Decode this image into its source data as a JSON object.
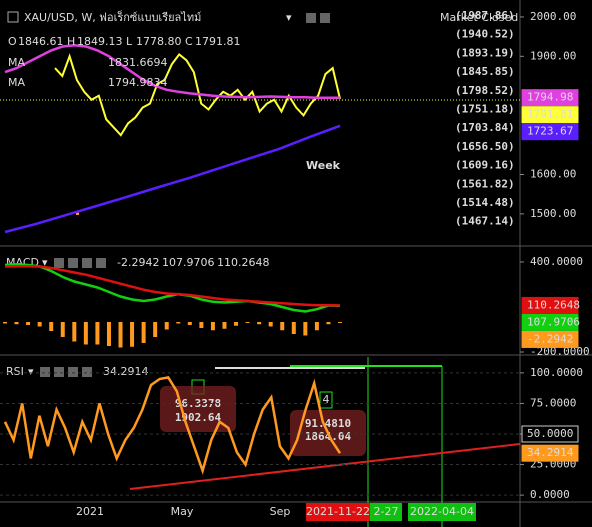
{
  "price_panel": {
    "title": "XAU/USD, W, ฟอเร็กซ์แบบเรียลไทม์",
    "market_status": "Market Closed",
    "ohlc": [
      {
        "key": "O",
        "value": "1846.61"
      },
      {
        "key": "H",
        "value": "1849.13"
      },
      {
        "key": "L",
        "value": "1778.80"
      },
      {
        "key": "C",
        "value": "1791.81"
      }
    ],
    "indicators": [
      {
        "name": "MA",
        "value": "1831.6694"
      },
      {
        "name": "MA",
        "value": "1794.9834"
      }
    ],
    "annotation": "Week",
    "levels": [
      "(1987.86)",
      "(1940.52)",
      "(1893.19)",
      "(1845.85)",
      "(1798.52)",
      "(1751.18)",
      "(1703.84)",
      "(1656.50)",
      "(1609.16)",
      "(1561.82)",
      "(1514.48)",
      "(1467.14)"
    ],
    "ylim": [
      1421,
      2043
    ],
    "yticks": [
      {
        "value": 2000,
        "label": "2000.00"
      },
      {
        "value": 1900,
        "label": "1900.00"
      },
      {
        "value": 1600,
        "label": "1600.00"
      },
      {
        "value": 1500,
        "label": "1500.00"
      }
    ],
    "badges": [
      {
        "value": 1794.98,
        "color": "#e040e0"
      },
      {
        "value": 1791.81,
        "color": "#ffff33"
      },
      {
        "value": 1723.67,
        "color": "#5a1fff"
      }
    ],
    "lines": [
      {
        "color": "#ffff33",
        "values": [
          1870,
          1850,
          1900,
          1840,
          1810,
          1790,
          1800,
          1740,
          1720,
          1700,
          1730,
          1745,
          1770,
          1780,
          1830,
          1840,
          1880,
          1905,
          1890,
          1860,
          1780,
          1765,
          1790,
          1810,
          1800,
          1815,
          1790,
          1810,
          1760,
          1780,
          1790,
          1760,
          1800,
          1770,
          1750,
          1780,
          1800,
          1855,
          1870,
          1791.81
        ]
      },
      {
        "color": "#e040e0",
        "values": [
          1860,
          1870,
          1885,
          1900,
          1915,
          1925,
          1928,
          1925,
          1915,
          1900,
          1880,
          1860,
          1840,
          1825,
          1815,
          1810,
          1806,
          1803,
          1800,
          1798,
          1797,
          1796,
          1797,
          1798,
          1797,
          1796,
          1796,
          1795,
          1795,
          1794.98
        ]
      },
      {
        "color": "#5a1fff",
        "values": [
          1454,
          1474,
          1497,
          1520,
          1543,
          1567,
          1590,
          1615,
          1640,
          1665,
          1695,
          1723.67
        ]
      }
    ]
  },
  "macd_panel": {
    "title": "MACD",
    "ylim": [
      -200,
      493
    ],
    "yticks": [
      {
        "value": 400,
        "label": "400.0000"
      },
      {
        "value": -200,
        "label": "-200.0000"
      }
    ],
    "badges": [
      {
        "value": 110.2648,
        "color": "#e01010"
      },
      {
        "value": 107.9706,
        "color": "#10d010"
      },
      {
        "value": -2.2942,
        "color": "#ff9a1f"
      }
    ],
    "histogram": {
      "color": "#ff9a1f",
      "values": [
        -10,
        -15,
        -20,
        -30,
        -60,
        -100,
        -130,
        -150,
        -150,
        -160,
        -170,
        -165,
        -140,
        -100,
        -50,
        -10,
        -20,
        -40,
        -55,
        -45,
        -25,
        -5,
        -15,
        -30,
        -55,
        -80,
        -90,
        -55,
        -15,
        -2.2942
      ]
    },
    "lines": [
      {
        "color": "#10d010",
        "values": [
          380,
          385,
          380,
          370,
          340,
          300,
          270,
          250,
          230,
          200,
          170,
          150,
          140,
          150,
          170,
          185,
          175,
          150,
          135,
          130,
          135,
          140,
          130,
          120,
          100,
          80,
          70,
          85,
          110,
          107.9706
        ]
      },
      {
        "color": "#e01010",
        "values": [
          370,
          372,
          372,
          370,
          360,
          345,
          330,
          315,
          295,
          275,
          255,
          235,
          215,
          200,
          190,
          185,
          180,
          170,
          160,
          150,
          145,
          140,
          135,
          130,
          125,
          120,
          115,
          112,
          111,
          110.2648
        ]
      }
    ]
  },
  "rsi_panel": {
    "title": "RSI",
    "ylim": [
      -4,
      113
    ],
    "yticks": [
      {
        "value": 100,
        "label": "100.0000"
      },
      {
        "value": 75,
        "label": "75.0000"
      },
      {
        "value": 50,
        "label": "50.0000"
      },
      {
        "value": 25,
        "label": "25.0000"
      },
      {
        "value": 0,
        "label": "0.0000"
      }
    ],
    "badges": [
      {
        "value": 50,
        "label": "50.0000",
        "color": "#000000"
      },
      {
        "value": 34.2914,
        "color": "#ff9a1f"
      }
    ],
    "notes": [
      {
        "lines": [
          "96.3378",
          "1902.64"
        ]
      },
      {
        "lines": [
          "91.4810",
          "1864.04"
        ]
      }
    ],
    "step_label": "4",
    "lines": [
      {
        "color": "#ff9a1f",
        "values": [
          60,
          45,
          75,
          30,
          65,
          40,
          70,
          55,
          35,
          60,
          45,
          75,
          50,
          30,
          45,
          55,
          70,
          90,
          95,
          96.3378,
          85,
          60,
          40,
          20,
          45,
          60,
          55,
          35,
          25,
          50,
          70,
          80,
          40,
          30,
          45,
          70,
          91.481,
          60,
          45,
          34.2914
        ]
      }
    ]
  },
  "time_axis": {
    "labels": [
      "2021",
      "May",
      "Sep"
    ],
    "badges": [
      "2021-11-22",
      "2-27",
      "2022-04-04"
    ]
  }
}
